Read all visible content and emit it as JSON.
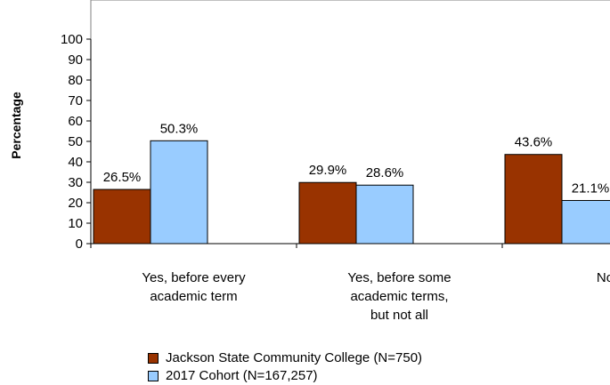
{
  "chart_data": {
    "type": "bar",
    "ylabel": "Percentage",
    "xlabel": "",
    "ylim": [
      0,
      100
    ],
    "yticks": [
      0,
      10,
      20,
      30,
      40,
      50,
      60,
      70,
      80,
      90,
      100
    ],
    "categories": [
      [
        "Yes, before every",
        "academic term"
      ],
      [
        "Yes, before some",
        "academic terms,",
        "but not all"
      ],
      [
        "No"
      ]
    ],
    "series": [
      {
        "name": "Jackson State Community College (N=750)",
        "color": "#993300",
        "values": [
          26.5,
          29.9,
          43.6
        ],
        "labels": [
          "26.5%",
          "29.9%",
          "43.6%"
        ]
      },
      {
        "name": "2017 Cohort (N=167,257)",
        "color": "#99ccff",
        "values": [
          50.3,
          28.6,
          21.1
        ],
        "labels": [
          "50.3%",
          "28.6%",
          "21.1%"
        ]
      }
    ],
    "legend_position": "bottom",
    "grid": false
  }
}
